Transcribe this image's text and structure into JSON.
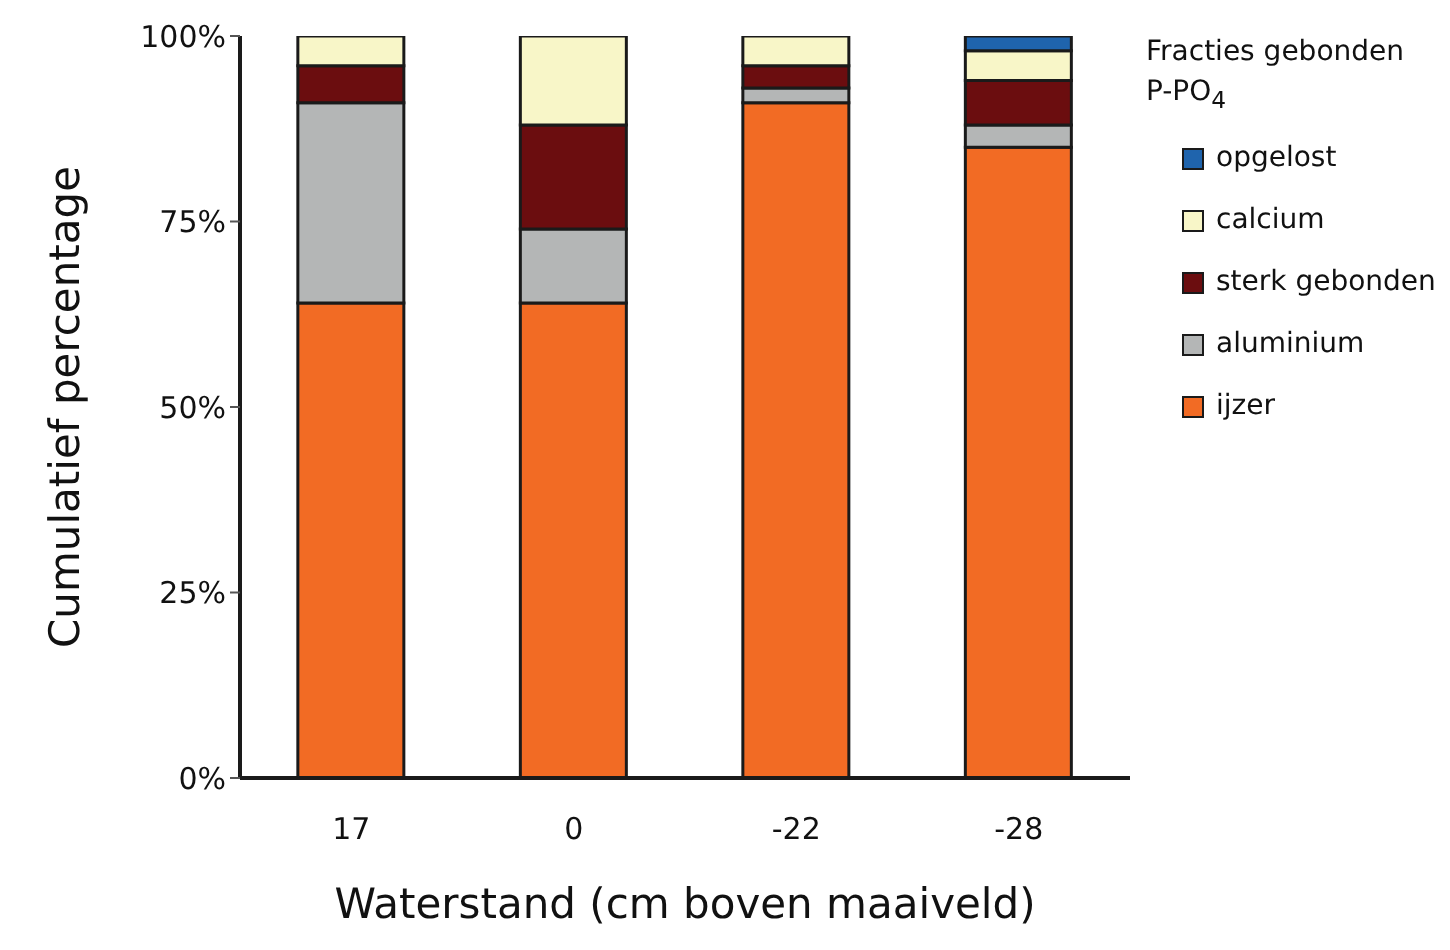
{
  "chart_data": {
    "type": "bar",
    "stacked": true,
    "xlabel": "Waterstand (cm boven maaiveld)",
    "ylabel": "Cumulatief percentage",
    "legend_title": "Fracties gebonden P-PO$_{4}$",
    "legend": "right",
    "categories": [
      "17",
      "0",
      "-22",
      "-28"
    ],
    "series": [
      {
        "name": "ijzer",
        "color": "#f26b24",
        "values": [
          64,
          64,
          91,
          85
        ]
      },
      {
        "name": "aluminium",
        "color": "#b4b6b6",
        "values": [
          27,
          10,
          2,
          3
        ]
      },
      {
        "name": "sterk gebonden",
        "color": "#6b0d0f",
        "values": [
          5,
          14,
          3,
          6
        ]
      },
      {
        "name": "calcium",
        "color": "#f8f6c8",
        "values": [
          4,
          12,
          4,
          4
        ]
      },
      {
        "name": "opgelost",
        "color": "#1f64ad",
        "values": [
          null,
          null,
          null,
          2
        ]
      }
    ],
    "ylim": [
      0,
      100
    ],
    "yticks": [
      {
        "value": 0,
        "label": "0%"
      },
      {
        "value": 25,
        "label": "25%"
      },
      {
        "value": 50,
        "label": "50%"
      },
      {
        "value": 75,
        "label": "75%"
      },
      {
        "value": 100,
        "label": "100%"
      }
    ]
  }
}
